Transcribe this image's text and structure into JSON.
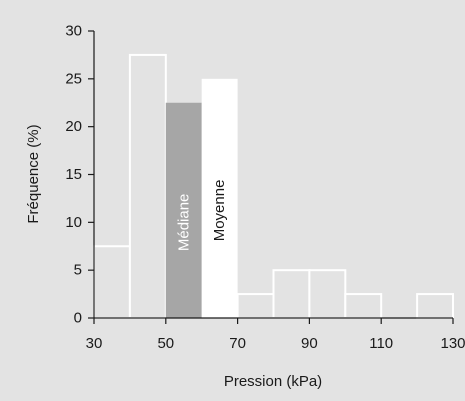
{
  "colors": {
    "background": "#e3e3e3",
    "bar_fill": "#e3e3e3",
    "bar_stroke": "#ffffff",
    "median_bar": "#a6a6a6",
    "mean_bar": "#ffffff",
    "axis": "#1a1a1a",
    "median_text": "#ffffff",
    "mean_text": "#1a1a1a"
  },
  "chart_data": {
    "type": "bar",
    "title": "",
    "xlabel": "Pression (kPa)",
    "ylabel": "Fréquence (%)",
    "xlim": [
      30,
      130
    ],
    "ylim": [
      0,
      30
    ],
    "x_ticks": [
      30,
      50,
      70,
      90,
      110,
      130
    ],
    "y_ticks": [
      0,
      5,
      10,
      15,
      20,
      25,
      30
    ],
    "grid": false,
    "bars": [
      {
        "x0": 30,
        "x1": 40,
        "value": 7.5,
        "kind": "normal"
      },
      {
        "x0": 40,
        "x1": 50,
        "value": 27.5,
        "kind": "normal"
      },
      {
        "x0": 50,
        "x1": 60,
        "value": 22.5,
        "kind": "median",
        "label": "Médiane"
      },
      {
        "x0": 60,
        "x1": 70,
        "value": 25,
        "kind": "mean",
        "label": "Moyenne"
      },
      {
        "x0": 70,
        "x1": 80,
        "value": 2.5,
        "kind": "normal"
      },
      {
        "x0": 80,
        "x1": 90,
        "value": 5,
        "kind": "normal"
      },
      {
        "x0": 90,
        "x1": 100,
        "value": 5,
        "kind": "normal"
      },
      {
        "x0": 100,
        "x1": 110,
        "value": 2.5,
        "kind": "normal"
      },
      {
        "x0": 110,
        "x1": 120,
        "value": 0,
        "kind": "normal"
      },
      {
        "x0": 120,
        "x1": 130,
        "value": 2.5,
        "kind": "normal"
      }
    ]
  }
}
